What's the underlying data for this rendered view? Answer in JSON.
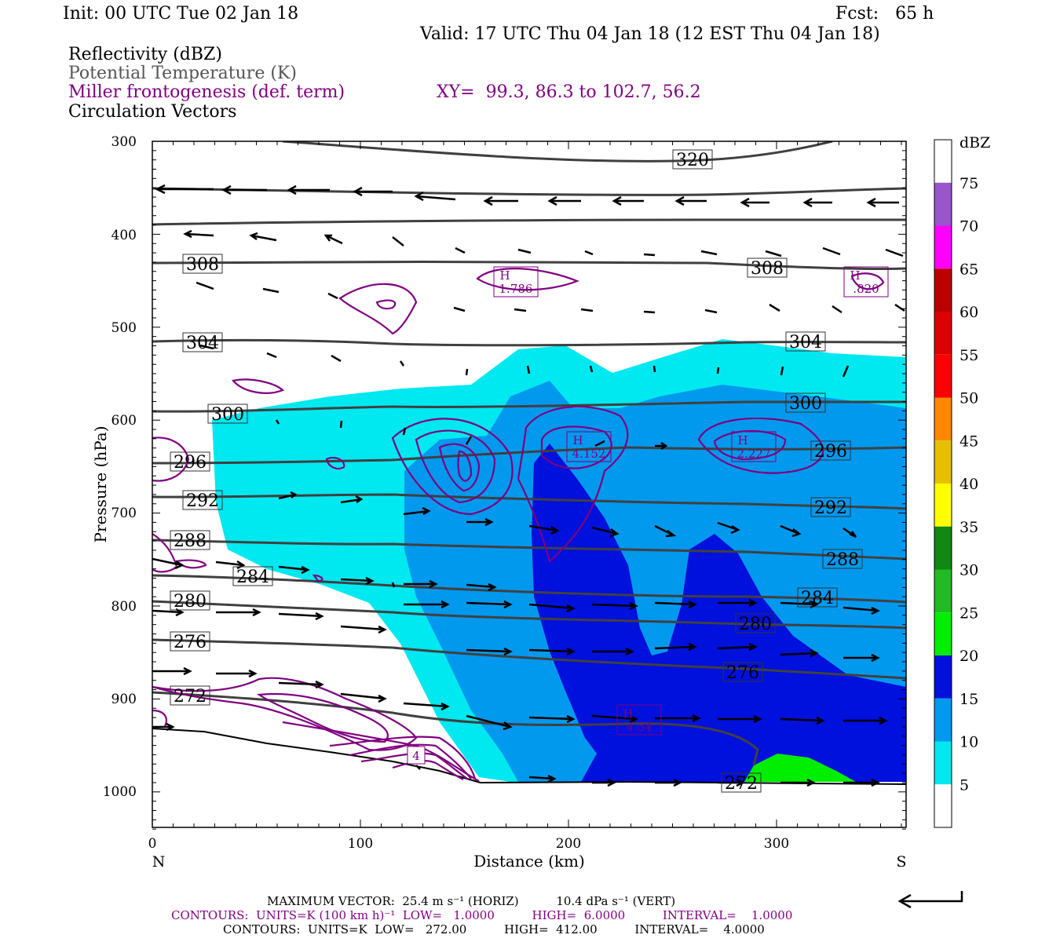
{
  "header": {
    "init": "Init: 00 UTC Tue 02 Jan 18",
    "fcst": "Fcst:   65 h",
    "valid": "Valid: 17 UTC Thu 04 Jan 18 (12 EST Thu 04 Jan 18)",
    "field1": "Reflectivity (dBZ)",
    "field2": "Potential Temperature (K)",
    "field3": "Miller frontogenesis (def. term)",
    "xy": "XY=  99.3, 86.3 to 102.7, 56.2",
    "field4": "Circulation Vectors"
  },
  "colors": {
    "z5": "#00e8f0",
    "z10": "#0099ee",
    "z15": "#0010dd",
    "z20": "#00ee00",
    "theta": "#404040",
    "fronto": "#800080"
  },
  "chart_data": {
    "type": "cross-section",
    "xlabel": "Distance (km)",
    "ylabel": "Pressure (hPa)",
    "x_ticks": [
      "0",
      "100",
      "200",
      "300"
    ],
    "y_ticks": [
      "300",
      "400",
      "500",
      "600",
      "700",
      "800",
      "900",
      "1000"
    ],
    "xlim": [
      0,
      362
    ],
    "ylim": [
      300,
      1040
    ],
    "ends": {
      "left": "N",
      "right": "S"
    },
    "colorbar": {
      "unit": "dBZ",
      "levels": [
        "5",
        "10",
        "15",
        "20",
        "25",
        "30",
        "35",
        "40",
        "45",
        "50",
        "55",
        "60",
        "65",
        "70",
        "75"
      ],
      "colors": [
        "#ffffff",
        "#00e8f0",
        "#0099ee",
        "#0010dd",
        "#00ee00",
        "#22bb22",
        "#118811",
        "#ffff00",
        "#e6c000",
        "#ff8800",
        "#ff0000",
        "#dd0000",
        "#bb0000",
        "#ff00ff",
        "#9955cc",
        "#ffffff"
      ]
    },
    "theta_labels": [
      "320",
      "308",
      "308",
      "304",
      "304",
      "300",
      "300",
      "296",
      "296",
      "292",
      "292",
      "288",
      "288",
      "284",
      "284",
      "280",
      "280",
      "276",
      "276",
      "272",
      "272"
    ],
    "fronto_labels": [
      {
        "h": "H",
        "v": "1.786"
      },
      {
        "h": "H",
        "v": ".820"
      },
      {
        "h": "H",
        "v": "4.152"
      },
      {
        "h": "H",
        "v": "2.227"
      },
      {
        "h": "H",
        "v": "4.54"
      },
      {
        "v": "4"
      }
    ]
  },
  "footer": {
    "max_vector": "MAXIMUM VECTOR:  25.4 m s⁻¹ (HORIZ)          10.4 dPa s⁻¹ (VERT)",
    "contours1": "CONTOURS:  UNITS=K (100 km h)⁻¹  LOW=   1.0000          HIGH=  6.0000          INTERVAL=    1.0000",
    "contours2": "CONTOURS:  UNITS=K  LOW=   272.00          HIGH=  412.00          INTERVAL=    4.0000"
  }
}
